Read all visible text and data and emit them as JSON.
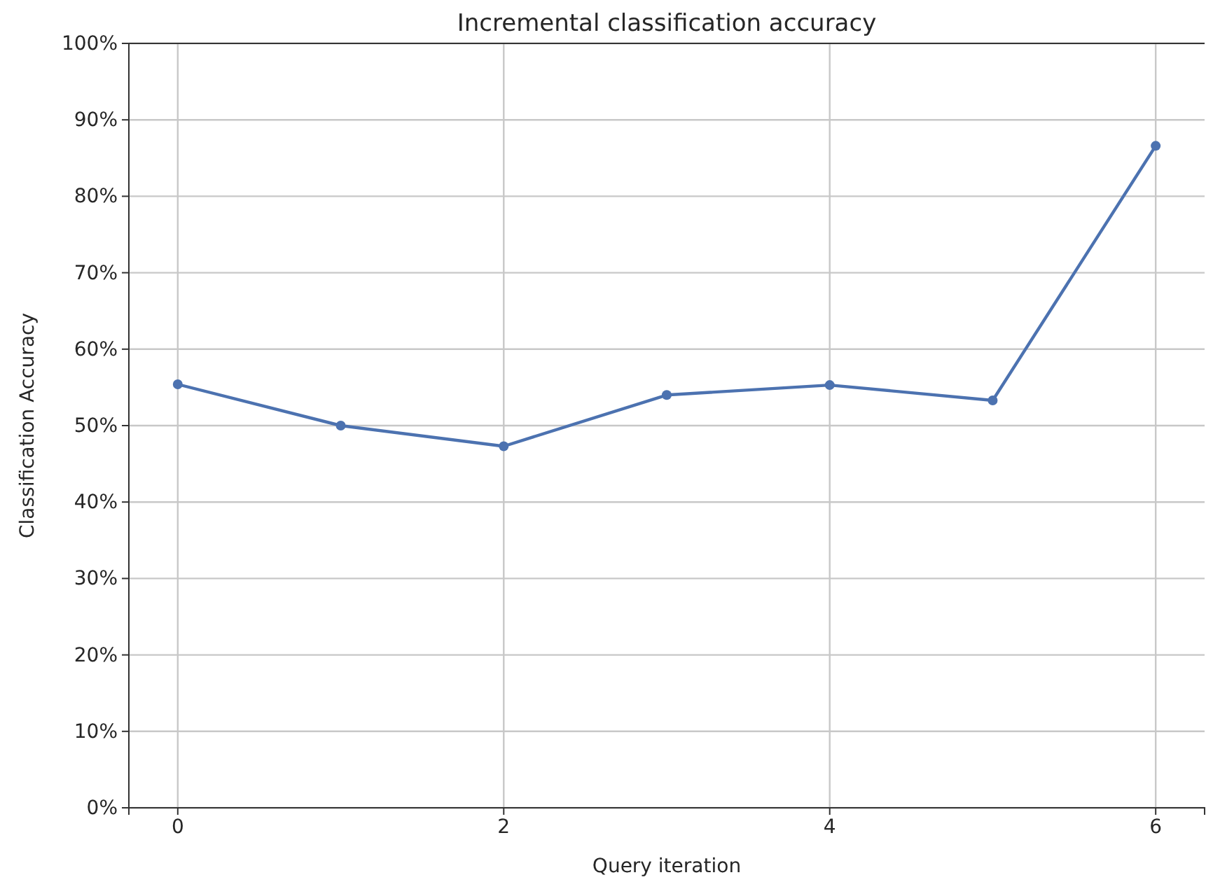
{
  "chart_data": {
    "type": "line",
    "title": "Incremental classification accuracy",
    "xlabel": "Query iteration",
    "ylabel": "Classification Accuracy",
    "x": [
      0,
      1,
      2,
      3,
      4,
      5,
      6
    ],
    "series": [
      {
        "color": "#4c72b0",
        "values": [
          55.4,
          50.0,
          47.3,
          54.0,
          55.3,
          53.3,
          86.6
        ]
      }
    ],
    "xlim": [
      -0.3,
      6.3
    ],
    "xticks": [
      0,
      2,
      4,
      6
    ],
    "ylim": [
      0,
      100
    ],
    "yticks": [
      {
        "value": 0,
        "label": "0%"
      },
      {
        "value": 10,
        "label": "10%"
      },
      {
        "value": 20,
        "label": "20%"
      },
      {
        "value": 30,
        "label": "30%"
      },
      {
        "value": 40,
        "label": "40%"
      },
      {
        "value": 50,
        "label": "50%"
      },
      {
        "value": 60,
        "label": "60%"
      },
      {
        "value": 70,
        "label": "70%"
      },
      {
        "value": 80,
        "label": "80%"
      },
      {
        "value": 90,
        "label": "90%"
      },
      {
        "value": 100,
        "label": "100%"
      }
    ],
    "grid": true,
    "marker": "circle",
    "line_style": "solid"
  }
}
